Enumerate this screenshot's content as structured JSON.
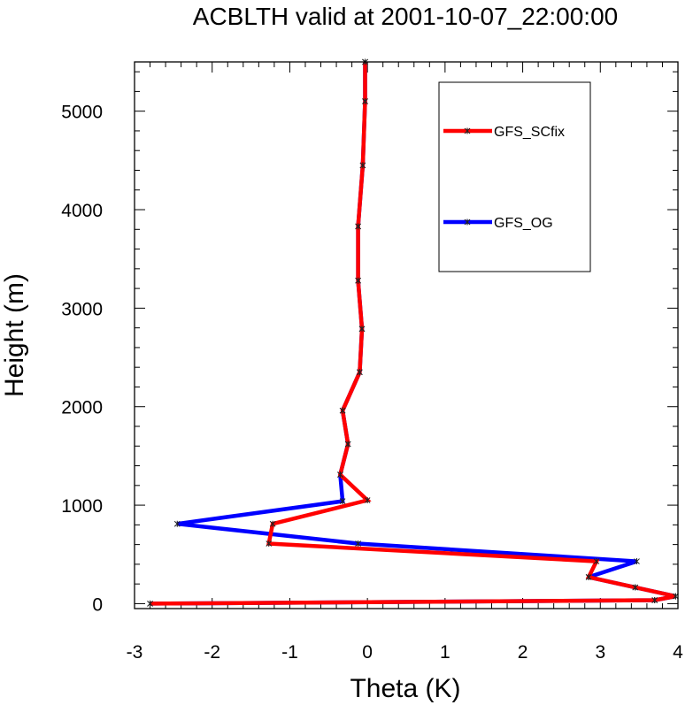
{
  "chart_data": {
    "type": "line",
    "title": "ACBLTH valid at 2001-10-07_22:00:00",
    "xlabel": "Theta (K)",
    "ylabel": "Height (m)",
    "xlim": [
      -3,
      4
    ],
    "ylim": [
      -50,
      5500
    ],
    "xticks": [
      -3,
      -2,
      -1,
      0,
      1,
      2,
      3,
      4
    ],
    "yticks": [
      0,
      1000,
      2000,
      3000,
      4000,
      5000
    ],
    "xtick_labels": [
      "-3",
      "-2",
      "-1",
      "0",
      "1",
      "2",
      "3",
      "4"
    ],
    "ytick_labels": [
      "0",
      "1000",
      "2000",
      "3000",
      "4000",
      "5000"
    ],
    "grid": false,
    "legend_position": "top-right",
    "series": [
      {
        "name": "GFS_SCfix",
        "color": "#ff0000",
        "points": [
          [
            -2.8,
            0
          ],
          [
            3.7,
            35
          ],
          [
            3.97,
            75
          ],
          [
            3.45,
            165
          ],
          [
            2.85,
            270
          ],
          [
            2.95,
            430
          ],
          [
            -1.27,
            610
          ],
          [
            -1.22,
            810
          ],
          [
            0.0,
            1050
          ],
          [
            -0.35,
            1310
          ],
          [
            -0.25,
            1620
          ],
          [
            -0.32,
            1960
          ],
          [
            -0.1,
            2350
          ],
          [
            -0.07,
            2790
          ],
          [
            -0.12,
            3280
          ],
          [
            -0.12,
            3830
          ],
          [
            -0.06,
            4450
          ],
          [
            -0.03,
            5100
          ],
          [
            -0.03,
            5500
          ]
        ]
      },
      {
        "name": "GFS_OG",
        "color": "#0000ff",
        "points": [
          [
            -2.8,
            0
          ],
          [
            3.7,
            35
          ],
          [
            3.97,
            75
          ],
          [
            3.45,
            165
          ],
          [
            2.85,
            270
          ],
          [
            3.47,
            430
          ],
          [
            -0.12,
            610
          ],
          [
            -2.45,
            810
          ],
          [
            -0.32,
            1040
          ],
          [
            -0.35,
            1310
          ],
          [
            -0.25,
            1620
          ],
          [
            -0.32,
            1960
          ],
          [
            -0.1,
            2350
          ],
          [
            -0.07,
            2790
          ],
          [
            -0.12,
            3280
          ],
          [
            -0.12,
            3830
          ],
          [
            -0.06,
            4450
          ],
          [
            -0.03,
            5100
          ],
          [
            -0.03,
            5500
          ]
        ]
      }
    ]
  }
}
